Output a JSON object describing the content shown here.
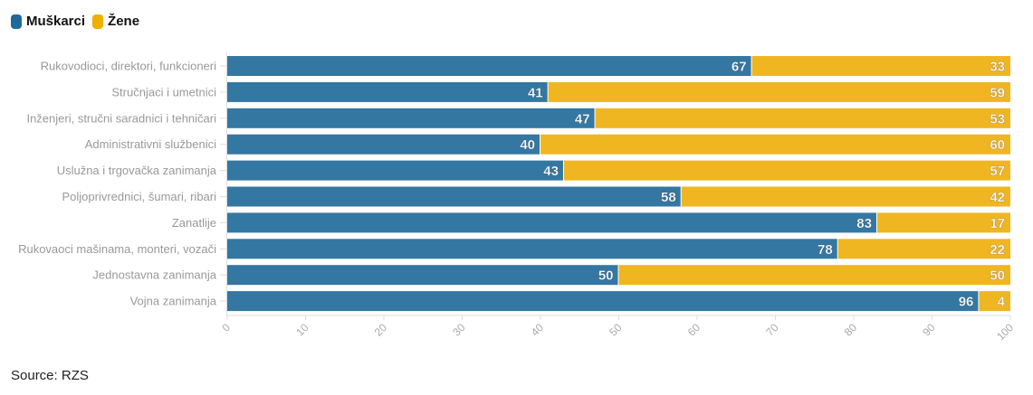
{
  "chart_data": {
    "type": "bar",
    "stacked": true,
    "orientation": "horizontal",
    "categories": [
      "Rukovodioci, direktori, funkcioneri",
      "Stručnjaci i umetnici",
      "Inženjeri, stručni saradnici i tehničari",
      "Administrativni službenici",
      "Uslužna i trgovačka zanimanja",
      "Poljoprivrednici, šumari, ribari",
      "Zanatlije",
      "Rukovaoci mašinama, monteri, vozači",
      "Jednostavna zanimanja",
      "Vojna zanimanja"
    ],
    "series": [
      {
        "name": "Muškarci",
        "color": "#3477a2",
        "values": [
          67,
          41,
          47,
          40,
          43,
          58,
          83,
          78,
          50,
          96
        ]
      },
      {
        "name": "Žene",
        "color": "#efb622",
        "values": [
          33,
          59,
          53,
          60,
          57,
          42,
          17,
          22,
          50,
          4
        ]
      }
    ],
    "xlim": [
      0,
      100
    ],
    "xticks": [
      "0",
      "10",
      "20",
      "30",
      "40",
      "50",
      "60",
      "70",
      "80",
      "90",
      "100"
    ],
    "legend": "top-left"
  },
  "source": "Source: RZS"
}
